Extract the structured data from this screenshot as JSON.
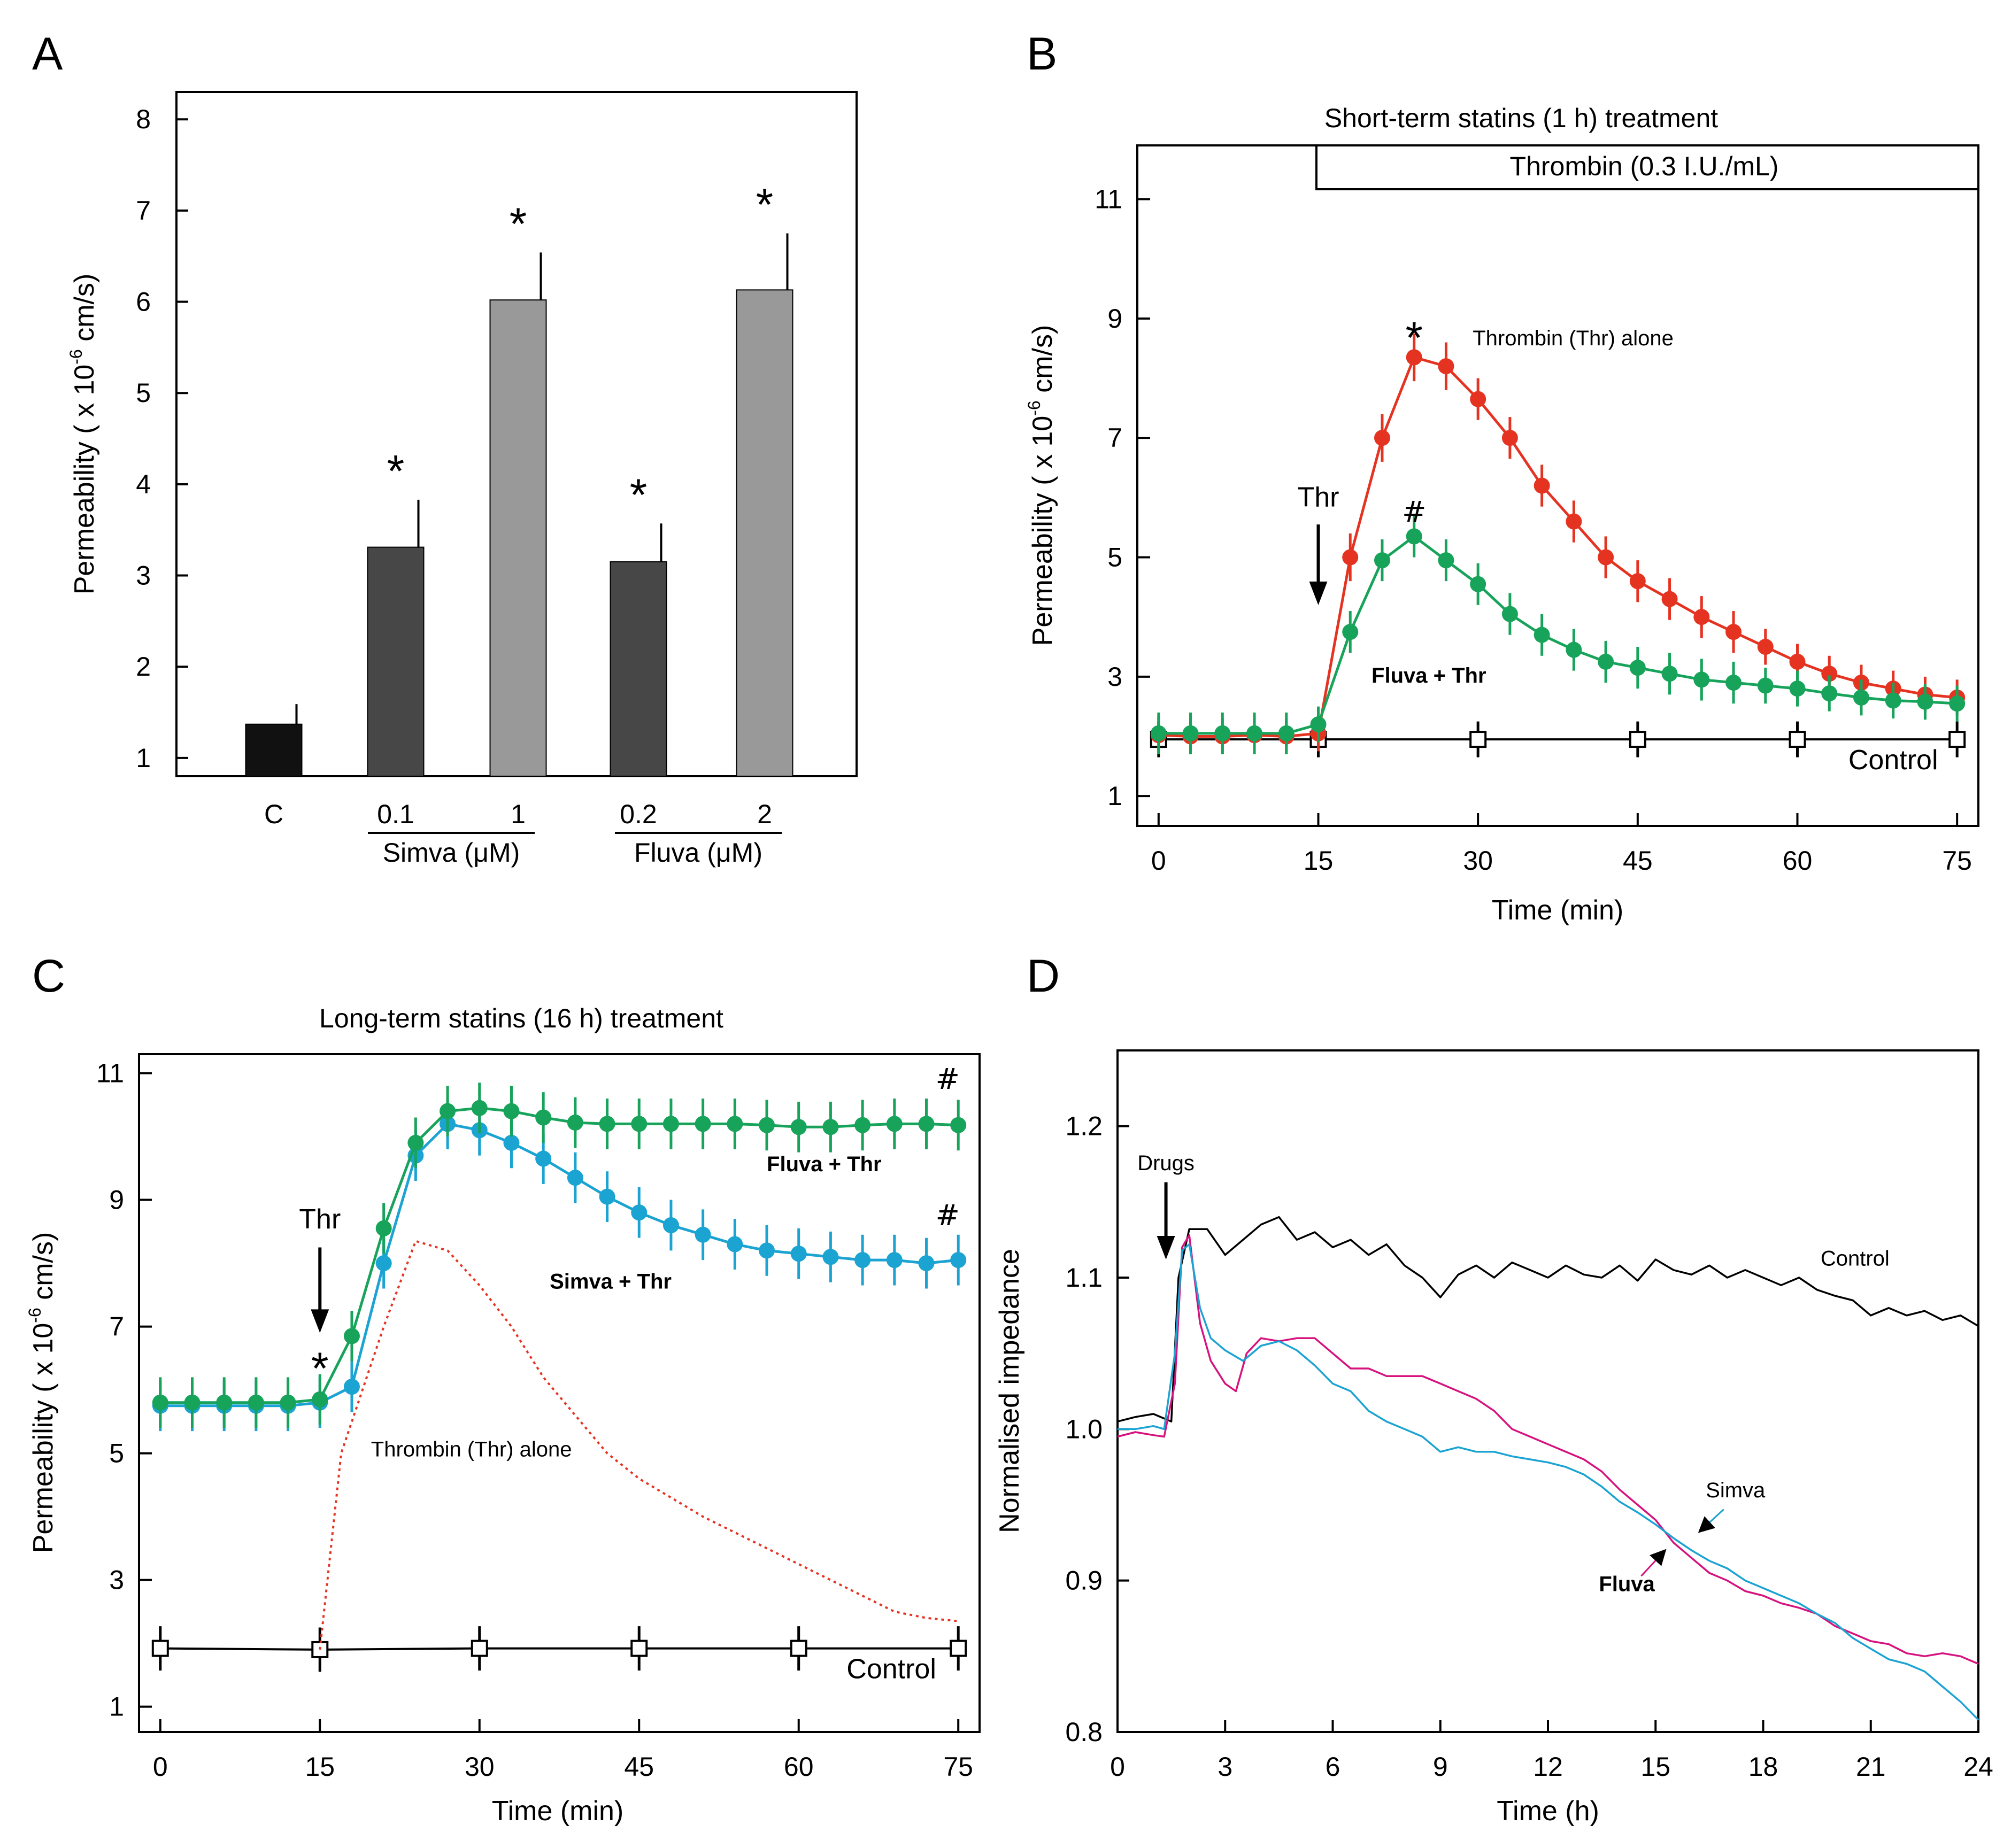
{
  "colors": {
    "thrombin": "#e53322",
    "fluva": "#17a35a",
    "simva": "#1ba3d2",
    "control": "#000000",
    "fluva_impedance": "#d6127f",
    "bar_control": "#111111",
    "bar_low": "#474747",
    "bar_high": "#999999"
  },
  "chart_data": [
    {
      "panel": "A",
      "type": "bar",
      "title": "",
      "ylabel": "Permeability ( x 10",
      "ylabel_exp": "-6",
      "ylabel_unit": " cm/s)",
      "ylim": [
        0.8,
        8.3
      ],
      "yticks": [
        "1",
        "2",
        "3",
        "4",
        "5",
        "6",
        "7",
        "8"
      ],
      "bars": [
        {
          "label": "C",
          "value": 1.37,
          "error": 0.22,
          "sig": "",
          "shade": "control"
        },
        {
          "label": "0.1",
          "value": 3.31,
          "error": 0.52,
          "sig": "*",
          "shade": "low"
        },
        {
          "label": "1",
          "value": 6.02,
          "error": 0.52,
          "sig": "*",
          "shade": "high"
        },
        {
          "label": "0.2",
          "value": 3.15,
          "error": 0.42,
          "sig": "*",
          "shade": "low"
        },
        {
          "label": "2",
          "value": 6.13,
          "error": 0.62,
          "sig": "*",
          "shade": "high"
        }
      ],
      "groups": [
        {
          "label": "Simva (",
          "mu": "μM",
          "close": ")"
        },
        {
          "label": "Fluva (",
          "mu": "μM",
          "close": ")"
        }
      ]
    },
    {
      "panel": "B",
      "type": "line",
      "title": "Short-term statins (1 h) treatment",
      "xlabel": "Time (min)",
      "ylabel": "Permeability ( x 10",
      "ylabel_exp": "-6",
      "ylabel_unit": " cm/s)",
      "xlim": [
        -2,
        77
      ],
      "ylim": [
        0.5,
        11.9
      ],
      "xticks": [
        "0",
        "15",
        "30",
        "45",
        "60",
        "75"
      ],
      "yticks": [
        "1",
        "3",
        "5",
        "7",
        "9",
        "11"
      ],
      "thrombin_bar_label": "Thrombin (0.3 I.U./mL)",
      "thr_arrow_label": "Thr",
      "series": [
        {
          "name": "Thrombin (Thr) alone",
          "color_key": "thrombin",
          "x": [
            0,
            3,
            6,
            9,
            12,
            15,
            18,
            21,
            24,
            27,
            30,
            33,
            36,
            39,
            42,
            45,
            48,
            51,
            54,
            57,
            60,
            63,
            66,
            69,
            72,
            75
          ],
          "y": [
            2.02,
            2.0,
            2.0,
            2.02,
            2.0,
            2.05,
            5.0,
            7.0,
            8.35,
            8.2,
            7.65,
            7.0,
            6.2,
            5.6,
            5.0,
            4.6,
            4.3,
            4.0,
            3.75,
            3.5,
            3.25,
            3.05,
            2.9,
            2.8,
            2.7,
            2.65
          ],
          "err": [
            0.3,
            0.3,
            0.3,
            0.3,
            0.3,
            0.3,
            0.4,
            0.4,
            0.4,
            0.4,
            0.35,
            0.35,
            0.35,
            0.35,
            0.35,
            0.35,
            0.35,
            0.35,
            0.35,
            0.3,
            0.3,
            0.3,
            0.3,
            0.3,
            0.3,
            0.3
          ]
        },
        {
          "name": "Fluva + Thr",
          "color_key": "fluva",
          "x": [
            0,
            3,
            6,
            9,
            12,
            15,
            18,
            21,
            24,
            27,
            30,
            33,
            36,
            39,
            42,
            45,
            48,
            51,
            54,
            57,
            60,
            63,
            66,
            69,
            72,
            75
          ],
          "y": [
            2.05,
            2.05,
            2.05,
            2.05,
            2.05,
            2.2,
            3.75,
            4.95,
            5.35,
            4.95,
            4.55,
            4.05,
            3.7,
            3.45,
            3.25,
            3.15,
            3.05,
            2.95,
            2.9,
            2.85,
            2.8,
            2.72,
            2.65,
            2.6,
            2.58,
            2.55
          ],
          "err": [
            0.35,
            0.35,
            0.35,
            0.35,
            0.35,
            0.3,
            0.35,
            0.35,
            0.35,
            0.35,
            0.35,
            0.35,
            0.35,
            0.35,
            0.35,
            0.35,
            0.35,
            0.35,
            0.35,
            0.3,
            0.3,
            0.3,
            0.3,
            0.3,
            0.3,
            0.3
          ]
        },
        {
          "name": "Control",
          "color_key": "control",
          "x": [
            0,
            15,
            30,
            45,
            60,
            75
          ],
          "y": [
            1.95,
            1.95,
            1.95,
            1.95,
            1.95,
            1.95
          ],
          "err": [
            0.3,
            0.3,
            0.3,
            0.3,
            0.3,
            0.3
          ]
        }
      ],
      "annotations": [
        {
          "text": "*",
          "x": 24,
          "y": 8.6
        },
        {
          "text": "#",
          "x": 24,
          "y": 5.65
        }
      ]
    },
    {
      "panel": "C",
      "type": "line",
      "title": "Long-term statins (16 h) treatment",
      "xlabel": "Time (min)",
      "ylabel": "Permeability ( x 10",
      "ylabel_exp": "-6",
      "ylabel_unit": " cm/s)",
      "xlim": [
        -2,
        77
      ],
      "ylim": [
        0.6,
        11.3
      ],
      "xticks": [
        "0",
        "15",
        "30",
        "45",
        "60",
        "75"
      ],
      "yticks": [
        "1",
        "3",
        "5",
        "7",
        "9",
        "11"
      ],
      "thr_arrow_label": "Thr",
      "series": [
        {
          "name": "Fluva + Thr",
          "color_key": "fluva",
          "x": [
            0,
            3,
            6,
            9,
            12,
            15,
            18,
            21,
            24,
            27,
            30,
            33,
            36,
            39,
            42,
            45,
            48,
            51,
            54,
            57,
            60,
            63,
            66,
            69,
            72,
            75
          ],
          "y": [
            5.8,
            5.8,
            5.8,
            5.8,
            5.8,
            5.85,
            6.85,
            8.55,
            9.9,
            10.4,
            10.45,
            10.4,
            10.3,
            10.22,
            10.2,
            10.2,
            10.2,
            10.2,
            10.2,
            10.18,
            10.15,
            10.15,
            10.18,
            10.2,
            10.2,
            10.18
          ],
          "err": [
            0.4,
            0.4,
            0.4,
            0.4,
            0.4,
            0.4,
            0.4,
            0.4,
            0.4,
            0.4,
            0.4,
            0.4,
            0.4,
            0.4,
            0.4,
            0.4,
            0.4,
            0.4,
            0.4,
            0.4,
            0.4,
            0.4,
            0.4,
            0.4,
            0.4,
            0.4
          ]
        },
        {
          "name": "Simva + Thr",
          "color_key": "simva",
          "x": [
            0,
            3,
            6,
            9,
            12,
            15,
            18,
            21,
            24,
            27,
            30,
            33,
            36,
            39,
            42,
            45,
            48,
            51,
            54,
            57,
            60,
            63,
            66,
            69,
            72,
            75
          ],
          "y": [
            5.75,
            5.75,
            5.75,
            5.75,
            5.75,
            5.8,
            6.05,
            8.0,
            9.7,
            10.2,
            10.1,
            9.9,
            9.65,
            9.35,
            9.05,
            8.8,
            8.6,
            8.45,
            8.3,
            8.2,
            8.15,
            8.1,
            8.05,
            8.05,
            8.0,
            8.05
          ],
          "err": [
            0.4,
            0.4,
            0.4,
            0.4,
            0.4,
            0.4,
            0.4,
            0.4,
            0.4,
            0.4,
            0.4,
            0.4,
            0.4,
            0.4,
            0.4,
            0.4,
            0.4,
            0.4,
            0.4,
            0.4,
            0.4,
            0.4,
            0.4,
            0.4,
            0.4,
            0.4
          ]
        },
        {
          "name": "Thrombin (Thr) alone",
          "color_key": "thrombin",
          "style": "dotted",
          "x": [
            15,
            17,
            21,
            24,
            27,
            30,
            33,
            36,
            39,
            42,
            45,
            48,
            51,
            54,
            57,
            60,
            63,
            66,
            69,
            72,
            75
          ],
          "y": [
            1.9,
            5.0,
            7.0,
            8.35,
            8.2,
            7.65,
            7.0,
            6.2,
            5.6,
            5.0,
            4.6,
            4.3,
            4.0,
            3.75,
            3.5,
            3.25,
            3.0,
            2.75,
            2.5,
            2.4,
            2.35
          ]
        },
        {
          "name": "Control",
          "color_key": "control",
          "x": [
            0,
            15,
            30,
            45,
            60,
            75
          ],
          "y": [
            1.92,
            1.9,
            1.92,
            1.92,
            1.92,
            1.92
          ],
          "err": [
            0.35,
            0.35,
            0.35,
            0.35,
            0.35,
            0.35
          ]
        }
      ],
      "annotations": [
        {
          "text": "*",
          "x": 15,
          "y": 6.35
        },
        {
          "text": "#",
          "x": 74,
          "y": 10.75
        },
        {
          "text": "#",
          "x": 74,
          "y": 8.6
        }
      ]
    },
    {
      "panel": "D",
      "type": "line",
      "title": "",
      "xlabel": "Time (h)",
      "ylabel": "Normalised impedance",
      "xlim": [
        0,
        24
      ],
      "ylim": [
        0.8,
        1.25
      ],
      "xticks": [
        "0",
        "3",
        "6",
        "9",
        "12",
        "15",
        "18",
        "21",
        "24"
      ],
      "yticks": [
        "0.8",
        "0.9",
        "1.0",
        "1.1",
        "1.2"
      ],
      "arrow_label": "Drugs",
      "series": [
        {
          "name": "Control",
          "color_key": "control",
          "x": [
            0,
            0.5,
            1.0,
            1.5,
            1.7,
            2.0,
            2.5,
            3.0,
            3.5,
            4.0,
            4.5,
            5.0,
            5.5,
            6.0,
            6.5,
            7.0,
            7.5,
            8.0,
            8.5,
            9.0,
            9.5,
            10.0,
            10.5,
            11.0,
            11.5,
            12.0,
            12.5,
            13.0,
            13.5,
            14.0,
            14.5,
            15.0,
            15.5,
            16.0,
            16.5,
            17.0,
            17.5,
            18.0,
            18.5,
            19.0,
            19.5,
            20.0,
            20.5,
            21.0,
            21.5,
            22.0,
            22.5,
            23.0,
            23.5,
            24.0
          ],
          "y": [
            1.005,
            1.008,
            1.01,
            1.005,
            1.1,
            1.132,
            1.132,
            1.115,
            1.125,
            1.135,
            1.14,
            1.125,
            1.13,
            1.12,
            1.125,
            1.115,
            1.122,
            1.108,
            1.1,
            1.087,
            1.102,
            1.108,
            1.1,
            1.11,
            1.105,
            1.1,
            1.108,
            1.102,
            1.1,
            1.108,
            1.098,
            1.112,
            1.105,
            1.102,
            1.108,
            1.1,
            1.105,
            1.1,
            1.095,
            1.1,
            1.092,
            1.088,
            1.085,
            1.075,
            1.08,
            1.075,
            1.078,
            1.072,
            1.075,
            1.068
          ]
        },
        {
          "name": "Fluva",
          "color_key": "fluva_impedance",
          "x": [
            0,
            0.5,
            1.0,
            1.3,
            1.6,
            1.8,
            2.0,
            2.3,
            2.6,
            3.0,
            3.3,
            3.6,
            4.0,
            4.5,
            5.0,
            5.5,
            6.0,
            6.5,
            7.0,
            7.5,
            8.0,
            8.5,
            9.0,
            9.5,
            10.0,
            10.5,
            11.0,
            11.5,
            12.0,
            12.5,
            13.0,
            13.5,
            14.0,
            14.5,
            15.0,
            15.5,
            16.0,
            16.5,
            17.0,
            17.5,
            18.0,
            18.5,
            19.0,
            19.5,
            20.0,
            20.5,
            21.0,
            21.5,
            22.0,
            22.5,
            23.0,
            23.5,
            24.0
          ],
          "y": [
            0.995,
            0.998,
            0.996,
            0.995,
            1.03,
            1.12,
            1.128,
            1.07,
            1.045,
            1.03,
            1.025,
            1.05,
            1.06,
            1.058,
            1.06,
            1.06,
            1.05,
            1.04,
            1.04,
            1.035,
            1.035,
            1.035,
            1.03,
            1.025,
            1.02,
            1.012,
            1.0,
            0.995,
            0.99,
            0.985,
            0.98,
            0.972,
            0.96,
            0.95,
            0.94,
            0.925,
            0.915,
            0.905,
            0.9,
            0.893,
            0.89,
            0.885,
            0.882,
            0.878,
            0.87,
            0.865,
            0.86,
            0.858,
            0.852,
            0.85,
            0.852,
            0.85,
            0.845
          ]
        },
        {
          "name": "Simva",
          "color_key": "simva",
          "x": [
            0,
            0.5,
            1.0,
            1.3,
            1.6,
            1.8,
            2.0,
            2.3,
            2.6,
            3.0,
            3.5,
            4.0,
            4.5,
            5.0,
            5.5,
            6.0,
            6.5,
            7.0,
            7.5,
            8.0,
            8.5,
            9.0,
            9.5,
            10.0,
            10.5,
            11.0,
            11.5,
            12.0,
            12.5,
            13.0,
            13.5,
            14.0,
            14.5,
            15.0,
            15.5,
            16.0,
            16.5,
            17.0,
            17.5,
            18.0,
            18.5,
            19.0,
            19.5,
            20.0,
            20.5,
            21.0,
            21.5,
            22.0,
            22.5,
            23.0,
            23.5,
            24.0
          ],
          "y": [
            1.0,
            1.0,
            1.002,
            1.0,
            1.05,
            1.118,
            1.122,
            1.08,
            1.06,
            1.052,
            1.045,
            1.055,
            1.058,
            1.052,
            1.042,
            1.03,
            1.025,
            1.012,
            1.005,
            1.0,
            0.995,
            0.985,
            0.988,
            0.985,
            0.985,
            0.982,
            0.98,
            0.978,
            0.975,
            0.97,
            0.962,
            0.952,
            0.945,
            0.937,
            0.928,
            0.92,
            0.913,
            0.908,
            0.9,
            0.895,
            0.89,
            0.885,
            0.878,
            0.872,
            0.862,
            0.855,
            0.848,
            0.845,
            0.84,
            0.83,
            0.82,
            0.808
          ]
        }
      ],
      "annotations": [
        {
          "text": "Control",
          "x": 19.6,
          "y": 1.108
        },
        {
          "text": "Simva",
          "x": 16.4,
          "y": 0.955
        },
        {
          "text": "Fluva",
          "x": 14.2,
          "y": 0.893
        }
      ]
    }
  ],
  "panel_labels": [
    "A",
    "B",
    "C",
    "D"
  ]
}
